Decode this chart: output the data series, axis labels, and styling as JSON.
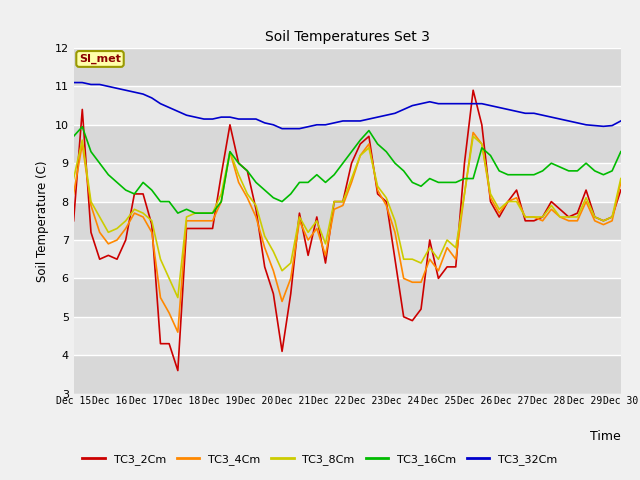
{
  "title": "Soil Temperatures Set 3",
  "xlabel": "Time",
  "ylabel": "Soil Temperature (C)",
  "ylim": [
    3.0,
    12.0
  ],
  "yticks": [
    3.0,
    4.0,
    5.0,
    6.0,
    7.0,
    8.0,
    9.0,
    10.0,
    11.0,
    12.0
  ],
  "x_labels": [
    "Dec 15",
    "Dec 16",
    "Dec 17",
    "Dec 18",
    "Dec 19",
    "Dec 20",
    "Dec 21",
    "Dec 22",
    "Dec 23",
    "Dec 24",
    "Dec 25",
    "Dec 26",
    "Dec 27",
    "Dec 28",
    "Dec 29",
    "Dec 30"
  ],
  "annotation": "SI_met",
  "n_points": 64,
  "bg_color": "#e8e8e8",
  "grid_color": "#ffffff",
  "fig_bg": "#f0f0f0",
  "series": {
    "TC3_2Cm": {
      "color": "#cc0000",
      "data": [
        7.5,
        10.4,
        7.2,
        6.5,
        6.6,
        6.5,
        7.0,
        8.2,
        8.2,
        7.4,
        4.3,
        4.3,
        3.6,
        7.3,
        7.3,
        7.3,
        7.3,
        8.7,
        10.0,
        9.0,
        8.8,
        7.8,
        6.3,
        5.6,
        4.1,
        5.6,
        7.7,
        6.6,
        7.6,
        6.4,
        8.0,
        8.0,
        9.0,
        9.5,
        9.7,
        8.2,
        8.0,
        6.5,
        5.0,
        4.9,
        5.2,
        7.0,
        6.0,
        6.3,
        6.3,
        9.0,
        10.9,
        10.0,
        8.0,
        7.6,
        8.0,
        8.3,
        7.5,
        7.5,
        7.6,
        8.0,
        7.8,
        7.6,
        7.7,
        8.3,
        7.6,
        7.5,
        7.6,
        8.3
      ]
    },
    "TC3_4Cm": {
      "color": "#ff8800",
      "data": [
        8.2,
        9.5,
        7.9,
        7.2,
        6.9,
        7.0,
        7.3,
        7.7,
        7.6,
        7.2,
        5.5,
        5.1,
        4.6,
        7.5,
        7.5,
        7.5,
        7.5,
        8.0,
        9.3,
        8.5,
        8.1,
        7.6,
        6.8,
        6.2,
        5.4,
        6.0,
        7.5,
        7.0,
        7.3,
        6.6,
        7.8,
        7.9,
        8.5,
        9.2,
        9.5,
        8.3,
        7.9,
        7.2,
        6.0,
        5.9,
        5.9,
        6.5,
        6.2,
        6.8,
        6.5,
        8.2,
        9.8,
        9.5,
        8.1,
        7.7,
        8.0,
        8.1,
        7.6,
        7.6,
        7.5,
        7.8,
        7.6,
        7.5,
        7.5,
        8.0,
        7.5,
        7.4,
        7.5,
        8.5
      ]
    },
    "TC3_8Cm": {
      "color": "#cccc00",
      "data": [
        8.6,
        9.6,
        8.0,
        7.6,
        7.2,
        7.3,
        7.5,
        7.8,
        7.7,
        7.5,
        6.5,
        6.0,
        5.5,
        7.6,
        7.7,
        7.7,
        7.7,
        8.2,
        9.3,
        8.7,
        8.2,
        7.9,
        7.1,
        6.7,
        6.2,
        6.4,
        7.6,
        7.2,
        7.5,
        6.9,
        8.0,
        8.0,
        8.6,
        9.2,
        9.4,
        8.4,
        8.1,
        7.5,
        6.5,
        6.5,
        6.4,
        6.8,
        6.5,
        7.0,
        6.8,
        8.2,
        9.7,
        9.5,
        8.2,
        7.8,
        8.0,
        8.0,
        7.6,
        7.6,
        7.6,
        7.9,
        7.6,
        7.6,
        7.6,
        8.1,
        7.6,
        7.5,
        7.6,
        8.6
      ]
    },
    "TC3_16Cm": {
      "color": "#00bb00",
      "data": [
        9.7,
        9.95,
        9.3,
        9.0,
        8.7,
        8.5,
        8.3,
        8.2,
        8.5,
        8.3,
        8.0,
        8.0,
        7.7,
        7.8,
        7.7,
        7.7,
        7.7,
        8.0,
        9.3,
        9.0,
        8.8,
        8.5,
        8.3,
        8.1,
        8.0,
        8.2,
        8.5,
        8.5,
        8.7,
        8.5,
        8.7,
        9.0,
        9.3,
        9.6,
        9.85,
        9.5,
        9.3,
        9.0,
        8.8,
        8.5,
        8.4,
        8.6,
        8.5,
        8.5,
        8.5,
        8.6,
        8.6,
        9.4,
        9.2,
        8.8,
        8.7,
        8.7,
        8.7,
        8.7,
        8.8,
        9.0,
        8.9,
        8.8,
        8.8,
        9.0,
        8.8,
        8.7,
        8.8,
        9.3
      ]
    },
    "TC3_32Cm": {
      "color": "#0000cc",
      "data": [
        11.1,
        11.1,
        11.05,
        11.05,
        11.0,
        10.95,
        10.9,
        10.85,
        10.8,
        10.7,
        10.55,
        10.45,
        10.35,
        10.25,
        10.2,
        10.15,
        10.15,
        10.2,
        10.2,
        10.15,
        10.15,
        10.15,
        10.05,
        10.0,
        9.9,
        9.9,
        9.9,
        9.95,
        10.0,
        10.0,
        10.05,
        10.1,
        10.1,
        10.1,
        10.15,
        10.2,
        10.25,
        10.3,
        10.4,
        10.5,
        10.55,
        10.6,
        10.55,
        10.55,
        10.55,
        10.55,
        10.55,
        10.55,
        10.5,
        10.45,
        10.4,
        10.35,
        10.3,
        10.3,
        10.25,
        10.2,
        10.15,
        10.1,
        10.05,
        10.0,
        9.98,
        9.96,
        9.98,
        10.1
      ]
    }
  }
}
